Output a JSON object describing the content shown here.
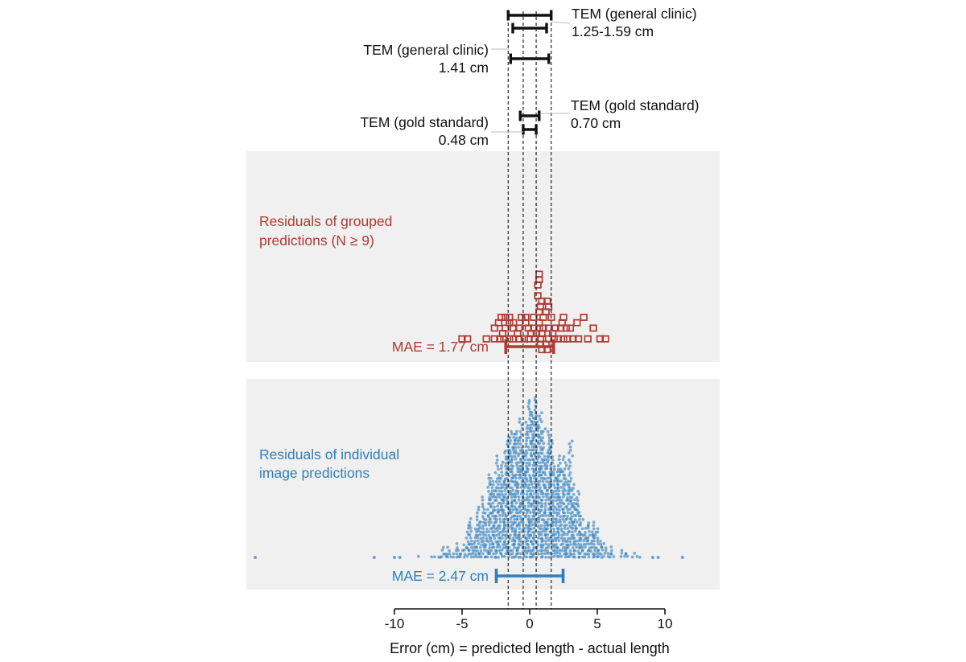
{
  "colors": {
    "panel_bg": "#f0f0f0",
    "black": "#111111",
    "grouped": "#b03a32",
    "individual": "#2e7fbf"
  },
  "chart_data": {
    "type": "scatter",
    "xlabel": "Error (cm) = predicted length - actual length",
    "xlim": [
      -10,
      10
    ],
    "xticks": [
      -10,
      -5,
      0,
      5,
      10
    ],
    "tick_labels": [
      "-10",
      "-5",
      "0",
      "5",
      "10"
    ],
    "reference_lines_x": [
      -1.59,
      -0.48,
      0.48,
      1.59
    ],
    "tem_intervals": [
      {
        "id": "general-range-outer",
        "lo": -1.59,
        "hi": 1.59
      },
      {
        "id": "general-range-inner",
        "lo": -1.25,
        "hi": 1.25
      },
      {
        "id": "general-single",
        "lo": -1.41,
        "hi": 1.41
      },
      {
        "id": "gold-070",
        "lo": -0.7,
        "hi": 0.7
      },
      {
        "id": "gold-048",
        "lo": -0.48,
        "hi": 0.48
      }
    ],
    "annotations": {
      "tem_general_range": [
        "TEM (general clinic)",
        "1.25-1.59 cm"
      ],
      "tem_general_single": [
        "TEM (general clinic)",
        "1.41 cm"
      ],
      "tem_gold_070": [
        "TEM (gold standard)",
        "0.70 cm"
      ],
      "tem_gold_048": [
        "TEM (gold standard)",
        "0.48 cm"
      ]
    },
    "series": [
      {
        "name": "Residuals of grouped predictions (N ≥ 9)",
        "label_lines": [
          "Residuals of grouped",
          "predictions (N ≥ 9)"
        ],
        "marker": "open-square",
        "mae_label": "MAE = 1.77 cm",
        "mae": 1.77,
        "points": [
          [
            0.7,
            8
          ],
          [
            0.7,
            7
          ],
          [
            0.6,
            6
          ],
          [
            0.6,
            4
          ],
          [
            0.9,
            3
          ],
          [
            1.3,
            3
          ],
          [
            0.8,
            2
          ],
          [
            1.4,
            2
          ],
          [
            0.7,
            1
          ],
          [
            1.2,
            1
          ],
          [
            -2.1,
            0
          ],
          [
            -1.8,
            0
          ],
          [
            -1.5,
            0
          ],
          [
            -0.6,
            0
          ],
          [
            -0.3,
            0
          ],
          [
            0.3,
            0
          ],
          [
            1.0,
            0
          ],
          [
            1.6,
            0
          ],
          [
            2.5,
            0
          ],
          [
            4.0,
            0
          ],
          [
            -2.3,
            -1
          ],
          [
            -1.5,
            -1
          ],
          [
            -1.2,
            -1
          ],
          [
            -0.3,
            -1
          ],
          [
            0.7,
            -1
          ],
          [
            2.4,
            -1
          ],
          [
            3.5,
            -1
          ],
          [
            -2.6,
            -2
          ],
          [
            -1.8,
            -2
          ],
          [
            -1.2,
            -2
          ],
          [
            -0.8,
            -2
          ],
          [
            -0.1,
            -2
          ],
          [
            0.3,
            -2
          ],
          [
            0.7,
            -2
          ],
          [
            1.0,
            -2
          ],
          [
            1.4,
            -2
          ],
          [
            1.9,
            -2
          ],
          [
            2.3,
            -2
          ],
          [
            2.7,
            -2
          ],
          [
            3.0,
            -2
          ],
          [
            4.7,
            -2
          ],
          [
            -2.0,
            -3
          ],
          [
            -0.9,
            -3
          ],
          [
            0.1,
            -3
          ],
          [
            0.5,
            -3
          ],
          [
            0.9,
            -3
          ],
          [
            1.7,
            -3
          ],
          [
            -5.0,
            -4
          ],
          [
            -4.6,
            -4
          ],
          [
            -3.2,
            -4
          ],
          [
            -2.6,
            -4
          ],
          [
            -2.2,
            -4
          ],
          [
            -1.9,
            -4
          ],
          [
            -1.5,
            -4
          ],
          [
            -1.2,
            -4
          ],
          [
            -0.8,
            -4
          ],
          [
            -0.4,
            -4
          ],
          [
            -0.1,
            -4
          ],
          [
            0.4,
            -4
          ],
          [
            0.8,
            -4
          ],
          [
            1.4,
            -4
          ],
          [
            1.8,
            -4
          ],
          [
            2.1,
            -4
          ],
          [
            2.5,
            -4
          ],
          [
            2.8,
            -4
          ],
          [
            3.2,
            -4
          ],
          [
            3.6,
            -4
          ],
          [
            4.3,
            -4
          ],
          [
            5.2,
            -4
          ],
          [
            5.6,
            -4
          ],
          [
            0.8,
            -5
          ],
          [
            1.2,
            -5
          ],
          [
            0.9,
            -6
          ],
          [
            1.3,
            -6
          ]
        ]
      },
      {
        "name": "Residuals of individual image predictions",
        "label_lines": [
          "Residuals of individual",
          "image predictions"
        ],
        "marker": "dot",
        "mae_label": "MAE = 2.47 cm",
        "mae": 2.47,
        "outliers": [
          -20.3,
          -11.5,
          -10.0,
          -9.6,
          9.1,
          9.5,
          11.3
        ]
      }
    ]
  }
}
